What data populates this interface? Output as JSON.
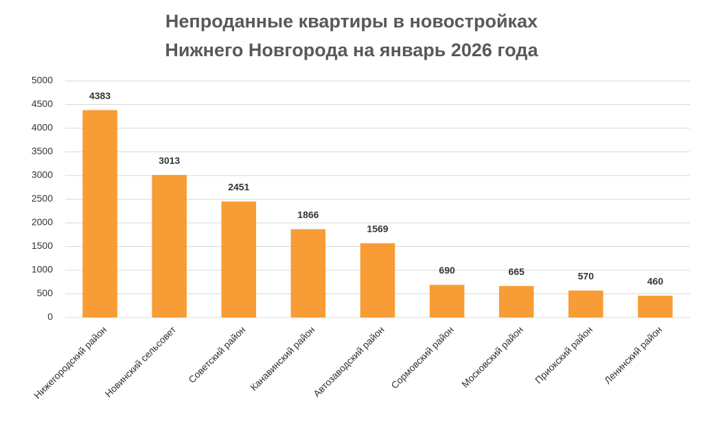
{
  "chart_data": {
    "type": "bar",
    "title": [
      "Непроданные квартиры в новостройках",
      "Нижнего Новгорода на январь 2026 года"
    ],
    "categories": [
      "Нижегородский район",
      "Новинский сельсовет",
      "Советский район",
      "Канавинский район",
      "Автозаводский район",
      "Сормовский район",
      "Московский район",
      "Приокский район",
      "Ленинский район"
    ],
    "values": [
      4383,
      3013,
      2451,
      1866,
      1569,
      690,
      665,
      570,
      460
    ],
    "color": "#f89c35",
    "ylim": [
      0,
      5000
    ],
    "yticks": [
      0,
      500,
      1000,
      1500,
      2000,
      2500,
      3000,
      3500,
      4000,
      4500,
      5000
    ],
    "grid": true
  }
}
